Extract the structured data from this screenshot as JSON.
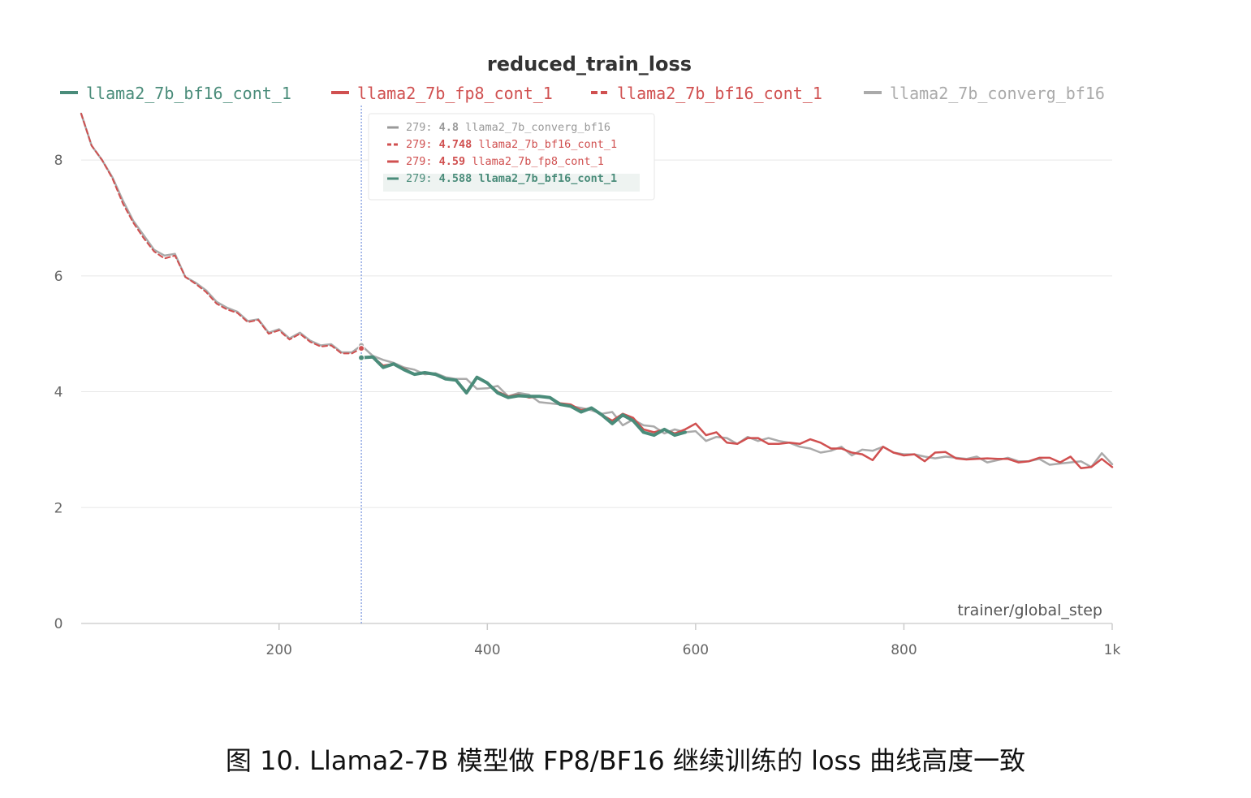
{
  "chart_data": {
    "type": "line",
    "title": "reduced_train_loss",
    "xlabel": "trainer/global_step",
    "ylabel": "",
    "xlim": [
      10,
      1000
    ],
    "ylim": [
      0,
      8.8
    ],
    "x_ticks": [
      200,
      400,
      600,
      800,
      1000
    ],
    "x_tick_labels": [
      "200",
      "400",
      "600",
      "800",
      "1k"
    ],
    "y_ticks": [
      0,
      2,
      4,
      6,
      8
    ],
    "y_tick_labels": [
      "0",
      "2",
      "4",
      "6",
      "8"
    ],
    "grid": true,
    "legend_position": "top",
    "legend": [
      {
        "label": "llama2_7b_bf16_cont_1",
        "color": "#4a8c7a",
        "dash": false
      },
      {
        "label": "llama2_7b_fp8_cont_1",
        "color": "#d05050",
        "dash": false
      },
      {
        "label": "llama2_7b_bf16_cont_1",
        "color": "#d05050",
        "dash": true
      },
      {
        "label": "llama2_7b_converg_bf16",
        "color": "#aaaaaa",
        "dash": false
      }
    ],
    "series": [
      {
        "name": "llama2_7b_converg_bf16",
        "color": "#aaaaaa",
        "dash": false,
        "width": 2.5,
        "points": [
          [
            10,
            8.8
          ],
          [
            20,
            8.25
          ],
          [
            30,
            8.0
          ],
          [
            40,
            7.7
          ],
          [
            50,
            7.3
          ],
          [
            60,
            6.95
          ],
          [
            70,
            6.7
          ],
          [
            80,
            6.45
          ],
          [
            90,
            6.35
          ],
          [
            100,
            6.38
          ],
          [
            110,
            5.98
          ],
          [
            120,
            5.88
          ],
          [
            130,
            5.75
          ],
          [
            140,
            5.55
          ],
          [
            150,
            5.45
          ],
          [
            160,
            5.38
          ],
          [
            170,
            5.22
          ],
          [
            180,
            5.25
          ],
          [
            190,
            5.02
          ],
          [
            200,
            5.08
          ],
          [
            210,
            4.92
          ],
          [
            220,
            5.02
          ],
          [
            230,
            4.88
          ],
          [
            240,
            4.8
          ],
          [
            250,
            4.82
          ],
          [
            260,
            4.68
          ],
          [
            270,
            4.68
          ],
          [
            279,
            4.8
          ],
          [
            290,
            4.62
          ],
          [
            300,
            4.55
          ],
          [
            310,
            4.5
          ],
          [
            320,
            4.42
          ],
          [
            330,
            4.38
          ],
          [
            340,
            4.3
          ],
          [
            350,
            4.32
          ],
          [
            360,
            4.25
          ],
          [
            370,
            4.22
          ],
          [
            380,
            4.22
          ],
          [
            390,
            4.05
          ],
          [
            400,
            4.06
          ],
          [
            410,
            4.1
          ],
          [
            420,
            3.92
          ],
          [
            430,
            3.98
          ],
          [
            440,
            3.95
          ],
          [
            450,
            3.82
          ],
          [
            460,
            3.8
          ],
          [
            470,
            3.78
          ],
          [
            480,
            3.75
          ],
          [
            490,
            3.72
          ],
          [
            500,
            3.68
          ],
          [
            510,
            3.62
          ],
          [
            520,
            3.65
          ],
          [
            530,
            3.42
          ],
          [
            540,
            3.52
          ],
          [
            550,
            3.42
          ],
          [
            560,
            3.4
          ],
          [
            570,
            3.28
          ],
          [
            580,
            3.35
          ],
          [
            590,
            3.3
          ],
          [
            600,
            3.32
          ],
          [
            610,
            3.15
          ],
          [
            620,
            3.22
          ],
          [
            630,
            3.2
          ],
          [
            640,
            3.1
          ],
          [
            650,
            3.22
          ],
          [
            660,
            3.15
          ],
          [
            670,
            3.2
          ],
          [
            680,
            3.15
          ],
          [
            690,
            3.12
          ],
          [
            700,
            3.05
          ],
          [
            710,
            3.02
          ],
          [
            720,
            2.95
          ],
          [
            730,
            2.98
          ],
          [
            740,
            3.05
          ],
          [
            750,
            2.9
          ],
          [
            760,
            3.0
          ],
          [
            770,
            2.98
          ],
          [
            780,
            3.05
          ],
          [
            790,
            2.95
          ],
          [
            800,
            2.92
          ],
          [
            810,
            2.92
          ],
          [
            820,
            2.88
          ],
          [
            830,
            2.85
          ],
          [
            840,
            2.88
          ],
          [
            850,
            2.86
          ],
          [
            860,
            2.84
          ],
          [
            870,
            2.88
          ],
          [
            880,
            2.78
          ],
          [
            890,
            2.82
          ],
          [
            900,
            2.86
          ],
          [
            910,
            2.8
          ],
          [
            920,
            2.8
          ],
          [
            930,
            2.84
          ],
          [
            940,
            2.74
          ],
          [
            950,
            2.76
          ],
          [
            960,
            2.78
          ],
          [
            970,
            2.8
          ],
          [
            980,
            2.7
          ],
          [
            990,
            2.94
          ],
          [
            1000,
            2.75
          ]
        ]
      },
      {
        "name": "llama2_7b_bf16_cont_1",
        "color": "#d05050",
        "dash": true,
        "width": 2,
        "points": [
          [
            10,
            8.8
          ],
          [
            20,
            8.25
          ],
          [
            30,
            8.0
          ],
          [
            40,
            7.68
          ],
          [
            50,
            7.25
          ],
          [
            60,
            6.92
          ],
          [
            70,
            6.65
          ],
          [
            80,
            6.42
          ],
          [
            90,
            6.3
          ],
          [
            100,
            6.35
          ],
          [
            110,
            5.98
          ],
          [
            120,
            5.86
          ],
          [
            130,
            5.72
          ],
          [
            140,
            5.52
          ],
          [
            150,
            5.42
          ],
          [
            160,
            5.36
          ],
          [
            170,
            5.2
          ],
          [
            180,
            5.24
          ],
          [
            190,
            5.0
          ],
          [
            200,
            5.06
          ],
          [
            210,
            4.9
          ],
          [
            220,
            5.0
          ],
          [
            230,
            4.86
          ],
          [
            240,
            4.78
          ],
          [
            250,
            4.8
          ],
          [
            260,
            4.66
          ],
          [
            270,
            4.66
          ],
          [
            279,
            4.748
          ]
        ]
      },
      {
        "name": "llama2_7b_fp8_cont_1",
        "color": "#d05050",
        "dash": false,
        "width": 2.5,
        "points": [
          [
            279,
            4.59
          ],
          [
            290,
            4.6
          ],
          [
            300,
            4.45
          ],
          [
            310,
            4.48
          ],
          [
            320,
            4.4
          ],
          [
            330,
            4.3
          ],
          [
            340,
            4.32
          ],
          [
            350,
            4.3
          ],
          [
            360,
            4.22
          ],
          [
            370,
            4.2
          ],
          [
            380,
            4.0
          ],
          [
            390,
            4.25
          ],
          [
            400,
            4.15
          ],
          [
            410,
            4.0
          ],
          [
            420,
            3.92
          ],
          [
            430,
            3.95
          ],
          [
            440,
            3.9
          ],
          [
            450,
            3.92
          ],
          [
            460,
            3.9
          ],
          [
            470,
            3.8
          ],
          [
            480,
            3.78
          ],
          [
            490,
            3.68
          ],
          [
            500,
            3.72
          ],
          [
            510,
            3.6
          ],
          [
            520,
            3.5
          ],
          [
            530,
            3.62
          ],
          [
            540,
            3.55
          ],
          [
            550,
            3.35
          ],
          [
            560,
            3.3
          ],
          [
            570,
            3.35
          ],
          [
            580,
            3.28
          ],
          [
            590,
            3.35
          ],
          [
            600,
            3.45
          ],
          [
            610,
            3.25
          ],
          [
            620,
            3.3
          ],
          [
            630,
            3.12
          ],
          [
            640,
            3.1
          ],
          [
            650,
            3.2
          ],
          [
            660,
            3.2
          ],
          [
            670,
            3.1
          ],
          [
            680,
            3.1
          ],
          [
            690,
            3.12
          ],
          [
            700,
            3.1
          ],
          [
            710,
            3.18
          ],
          [
            720,
            3.12
          ],
          [
            730,
            3.02
          ],
          [
            740,
            3.02
          ],
          [
            750,
            2.95
          ],
          [
            760,
            2.92
          ],
          [
            770,
            2.82
          ],
          [
            780,
            3.05
          ],
          [
            790,
            2.95
          ],
          [
            800,
            2.9
          ],
          [
            810,
            2.92
          ],
          [
            820,
            2.8
          ],
          [
            830,
            2.95
          ],
          [
            840,
            2.96
          ],
          [
            850,
            2.85
          ],
          [
            860,
            2.83
          ],
          [
            870,
            2.84
          ],
          [
            880,
            2.85
          ],
          [
            890,
            2.84
          ],
          [
            900,
            2.84
          ],
          [
            910,
            2.78
          ],
          [
            920,
            2.8
          ],
          [
            930,
            2.86
          ],
          [
            940,
            2.86
          ],
          [
            950,
            2.78
          ],
          [
            960,
            2.88
          ],
          [
            970,
            2.68
          ],
          [
            980,
            2.7
          ],
          [
            990,
            2.84
          ],
          [
            1000,
            2.7
          ]
        ]
      },
      {
        "name": "llama2_7b_bf16_cont_1",
        "color": "#4a8c7a",
        "dash": false,
        "width": 4,
        "points": [
          [
            279,
            4.588
          ],
          [
            290,
            4.6
          ],
          [
            300,
            4.42
          ],
          [
            310,
            4.48
          ],
          [
            320,
            4.38
          ],
          [
            330,
            4.3
          ],
          [
            340,
            4.33
          ],
          [
            350,
            4.3
          ],
          [
            360,
            4.22
          ],
          [
            370,
            4.2
          ],
          [
            380,
            3.98
          ],
          [
            390,
            4.25
          ],
          [
            400,
            4.15
          ],
          [
            410,
            3.98
          ],
          [
            420,
            3.9
          ],
          [
            430,
            3.93
          ],
          [
            440,
            3.92
          ],
          [
            450,
            3.92
          ],
          [
            460,
            3.9
          ],
          [
            470,
            3.78
          ],
          [
            480,
            3.75
          ],
          [
            490,
            3.65
          ],
          [
            500,
            3.72
          ],
          [
            510,
            3.6
          ],
          [
            520,
            3.45
          ],
          [
            530,
            3.6
          ],
          [
            540,
            3.5
          ],
          [
            550,
            3.3
          ],
          [
            560,
            3.25
          ],
          [
            570,
            3.35
          ],
          [
            580,
            3.25
          ],
          [
            590,
            3.3
          ]
        ]
      }
    ],
    "tooltip": {
      "lines": [
        {
          "step": "279:",
          "value": "4.8",
          "name": "llama2_7b_converg_bf16",
          "color": "#999999",
          "dash": false
        },
        {
          "step": "279:",
          "value": "4.748",
          "name": "llama2_7b_bf16_cont_1",
          "color": "#d05050",
          "dash": true
        },
        {
          "step": "279:",
          "value": "4.59",
          "name": "llama2_7b_fp8_cont_1",
          "color": "#d05050",
          "dash": false
        },
        {
          "step": "279:",
          "value": "4.588",
          "name": "llama2_7b_bf16_cont_1",
          "color": "#4a8c7a",
          "dash": false
        }
      ],
      "hover_x": 279
    }
  },
  "caption": "图 10. Llama2-7B 模型做 FP8/BF16 继续训练的 loss 曲线高度一致"
}
